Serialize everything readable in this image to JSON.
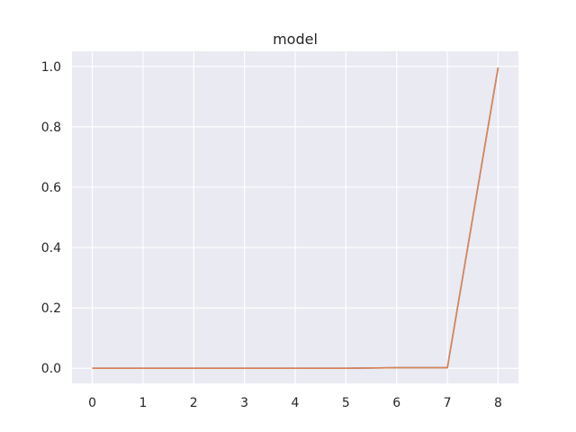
{
  "chart_data": {
    "type": "line",
    "title": "model",
    "xlabel": "",
    "ylabel": "",
    "x": [
      0,
      1,
      2,
      3,
      4,
      5,
      6,
      7,
      8
    ],
    "xlim": [
      -0.4,
      8.4
    ],
    "ylim": [
      -0.05,
      1.05
    ],
    "xticks": [
      0,
      1,
      2,
      3,
      4,
      5,
      6,
      7,
      8
    ],
    "yticks": [
      0.0,
      0.2,
      0.4,
      0.6,
      0.8,
      1.0
    ],
    "ytick_labels": [
      "0.0",
      "0.2",
      "0.4",
      "0.6",
      "0.8",
      "1.0"
    ],
    "grid": true,
    "legend": "none",
    "series": [
      {
        "color": "#4c72b0",
        "values": [
          0.0,
          0.0,
          0.0,
          0.0,
          0.0,
          0.0,
          0.002,
          0.002,
          0.996
        ]
      },
      {
        "color": "#dd8452",
        "values": [
          0.0,
          0.0,
          0.0,
          0.0,
          0.0,
          0.0,
          0.002,
          0.002,
          0.996
        ]
      }
    ],
    "background": "#eaeaf2",
    "grid_color": "#ffffff"
  }
}
